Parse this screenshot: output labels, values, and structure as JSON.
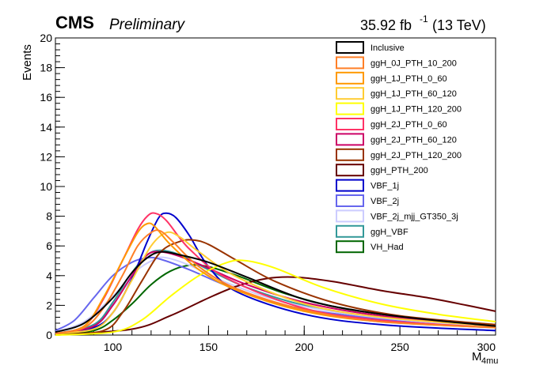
{
  "header": {
    "experiment": "CMS",
    "status": "Preliminary",
    "lumi_value": "35.92 fb",
    "lumi_exp": "-1",
    "energy": "(13 TeV)"
  },
  "chart_data": {
    "type": "line",
    "xlabel_main": "M",
    "xlabel_sub": "4mu",
    "ylabel": "Events",
    "xlim": [
      70,
      300
    ],
    "ylim": [
      0,
      20
    ],
    "x_ticks": [
      100,
      150,
      200,
      250,
      300
    ],
    "y_ticks": [
      0,
      2,
      4,
      6,
      8,
      10,
      12,
      14,
      16,
      18,
      20
    ],
    "legend_position": "top-right",
    "grid": false,
    "series": [
      {
        "name": "Inclusive",
        "color": "#000000",
        "points": [
          [
            70,
            0.2
          ],
          [
            85,
            0.8
          ],
          [
            100,
            2.5
          ],
          [
            110,
            4.2
          ],
          [
            118,
            5.2
          ],
          [
            125,
            5.6
          ],
          [
            135,
            5.4
          ],
          [
            150,
            4.9
          ],
          [
            170,
            3.9
          ],
          [
            200,
            2.4
          ],
          [
            230,
            1.6
          ],
          [
            260,
            1.1
          ],
          [
            300,
            0.6
          ]
        ]
      },
      {
        "name": "ggH_0J_PTH_10_200",
        "color": "#ff7f27",
        "points": [
          [
            70,
            0.1
          ],
          [
            85,
            0.5
          ],
          [
            95,
            1.8
          ],
          [
            105,
            4.0
          ],
          [
            113,
            6.0
          ],
          [
            120,
            6.9
          ],
          [
            125,
            7.0
          ],
          [
            132,
            6.2
          ],
          [
            145,
            4.6
          ],
          [
            165,
            3.1
          ],
          [
            200,
            1.7
          ],
          [
            240,
            0.9
          ],
          [
            300,
            0.5
          ]
        ]
      },
      {
        "name": "ggH_1J_PTH_0_60",
        "color": "#ff9900",
        "points": [
          [
            70,
            0.1
          ],
          [
            85,
            0.6
          ],
          [
            95,
            2.5
          ],
          [
            105,
            5.0
          ],
          [
            113,
            6.9
          ],
          [
            118,
            7.5
          ],
          [
            122,
            7.3
          ],
          [
            130,
            6.1
          ],
          [
            145,
            4.4
          ],
          [
            165,
            3.0
          ],
          [
            200,
            1.6
          ],
          [
            240,
            0.9
          ],
          [
            300,
            0.5
          ]
        ]
      },
      {
        "name": "ggH_1J_PTH_60_120",
        "color": "#ffcc33",
        "points": [
          [
            70,
            0.1
          ],
          [
            90,
            0.4
          ],
          [
            100,
            1.5
          ],
          [
            110,
            3.7
          ],
          [
            120,
            6.0
          ],
          [
            128,
            6.9
          ],
          [
            135,
            6.6
          ],
          [
            145,
            5.6
          ],
          [
            165,
            3.9
          ],
          [
            200,
            2.1
          ],
          [
            240,
            1.2
          ],
          [
            300,
            0.6
          ]
        ]
      },
      {
        "name": "ggH_1J_PTH_120_200",
        "color": "#ffff00",
        "points": [
          [
            70,
            0.0
          ],
          [
            100,
            0.2
          ],
          [
            115,
            1.0
          ],
          [
            130,
            2.6
          ],
          [
            145,
            4.0
          ],
          [
            160,
            4.9
          ],
          [
            170,
            5.0
          ],
          [
            185,
            4.5
          ],
          [
            210,
            3.2
          ],
          [
            240,
            2.1
          ],
          [
            270,
            1.4
          ],
          [
            300,
            0.9
          ]
        ]
      },
      {
        "name": "ggH_2J_PTH_0_60",
        "color": "#ff3366",
        "points": [
          [
            70,
            0.1
          ],
          [
            85,
            0.6
          ],
          [
            95,
            2.4
          ],
          [
            105,
            5.0
          ],
          [
            113,
            7.1
          ],
          [
            118,
            8.0
          ],
          [
            122,
            8.2
          ],
          [
            128,
            7.7
          ],
          [
            140,
            5.8
          ],
          [
            160,
            3.8
          ],
          [
            200,
            1.8
          ],
          [
            240,
            1.0
          ],
          [
            300,
            0.5
          ]
        ]
      },
      {
        "name": "ggH_2J_PTH_60_120",
        "color": "#cc0066",
        "points": [
          [
            70,
            0.1
          ],
          [
            90,
            0.6
          ],
          [
            100,
            2.0
          ],
          [
            110,
            4.0
          ],
          [
            118,
            5.4
          ],
          [
            125,
            5.6
          ],
          [
            135,
            5.3
          ],
          [
            150,
            4.5
          ],
          [
            170,
            3.4
          ],
          [
            200,
            2.2
          ],
          [
            240,
            1.3
          ],
          [
            300,
            0.6
          ]
        ]
      },
      {
        "name": "ggH_2J_PTH_120_200",
        "color": "#993300",
        "points": [
          [
            70,
            0.0
          ],
          [
            95,
            0.3
          ],
          [
            105,
            1.5
          ],
          [
            115,
            3.6
          ],
          [
            125,
            5.6
          ],
          [
            135,
            6.3
          ],
          [
            142,
            6.4
          ],
          [
            150,
            6.1
          ],
          [
            165,
            5.0
          ],
          [
            185,
            3.6
          ],
          [
            215,
            2.2
          ],
          [
            250,
            1.3
          ],
          [
            300,
            0.7
          ]
        ]
      },
      {
        "name": "ggH_PTH_200",
        "color": "#660000",
        "points": [
          [
            70,
            0.0
          ],
          [
            110,
            0.4
          ],
          [
            130,
            1.3
          ],
          [
            150,
            2.5
          ],
          [
            165,
            3.3
          ],
          [
            180,
            3.8
          ],
          [
            195,
            3.9
          ],
          [
            215,
            3.6
          ],
          [
            240,
            3.0
          ],
          [
            265,
            2.5
          ],
          [
            285,
            2.0
          ],
          [
            300,
            1.6
          ]
        ]
      },
      {
        "name": "VBF_1j",
        "color": "#0000cc",
        "points": [
          [
            70,
            0.1
          ],
          [
            90,
            0.5
          ],
          [
            100,
            1.5
          ],
          [
            110,
            3.8
          ],
          [
            118,
            6.3
          ],
          [
            124,
            7.9
          ],
          [
            128,
            8.2
          ],
          [
            133,
            7.9
          ],
          [
            140,
            6.7
          ],
          [
            150,
            4.6
          ],
          [
            165,
            2.9
          ],
          [
            200,
            1.4
          ],
          [
            240,
            0.7
          ],
          [
            300,
            0.3
          ]
        ]
      },
      {
        "name": "VBF_2j",
        "color": "#6666ee",
        "points": [
          [
            70,
            0.3
          ],
          [
            80,
            1.0
          ],
          [
            90,
            2.5
          ],
          [
            100,
            4.0
          ],
          [
            110,
            4.9
          ],
          [
            118,
            5.2
          ],
          [
            125,
            5.1
          ],
          [
            140,
            4.4
          ],
          [
            160,
            3.3
          ],
          [
            190,
            2.0
          ],
          [
            230,
            1.2
          ],
          [
            270,
            0.7
          ],
          [
            300,
            0.5
          ]
        ]
      },
      {
        "name": "VBF_2j_mjj_GT350_3j",
        "color": "#ccccff",
        "points": [
          [
            70,
            0.2
          ],
          [
            85,
            0.9
          ],
          [
            100,
            2.6
          ],
          [
            112,
            4.3
          ],
          [
            122,
            5.1
          ],
          [
            128,
            5.2
          ],
          [
            140,
            4.7
          ],
          [
            160,
            3.5
          ],
          [
            190,
            2.2
          ],
          [
            230,
            1.3
          ],
          [
            270,
            0.8
          ],
          [
            300,
            0.5
          ]
        ]
      },
      {
        "name": "ggH_VBF",
        "color": "#339999",
        "points": [
          [
            70,
            0.1
          ],
          [
            90,
            0.7
          ],
          [
            100,
            2.2
          ],
          [
            110,
            4.2
          ],
          [
            118,
            5.4
          ],
          [
            125,
            5.7
          ],
          [
            135,
            5.4
          ],
          [
            150,
            4.4
          ],
          [
            170,
            3.2
          ],
          [
            200,
            2.0
          ],
          [
            240,
            1.1
          ],
          [
            300,
            0.5
          ]
        ]
      },
      {
        "name": "VH_Had",
        "color": "#006600",
        "points": [
          [
            70,
            0.0
          ],
          [
            90,
            0.3
          ],
          [
            100,
            1.0
          ],
          [
            110,
            2.1
          ],
          [
            120,
            3.4
          ],
          [
            130,
            4.3
          ],
          [
            140,
            4.7
          ],
          [
            150,
            4.6
          ],
          [
            165,
            4.0
          ],
          [
            190,
            2.8
          ],
          [
            220,
            1.8
          ],
          [
            260,
            1.1
          ],
          [
            300,
            0.6
          ]
        ]
      }
    ]
  }
}
